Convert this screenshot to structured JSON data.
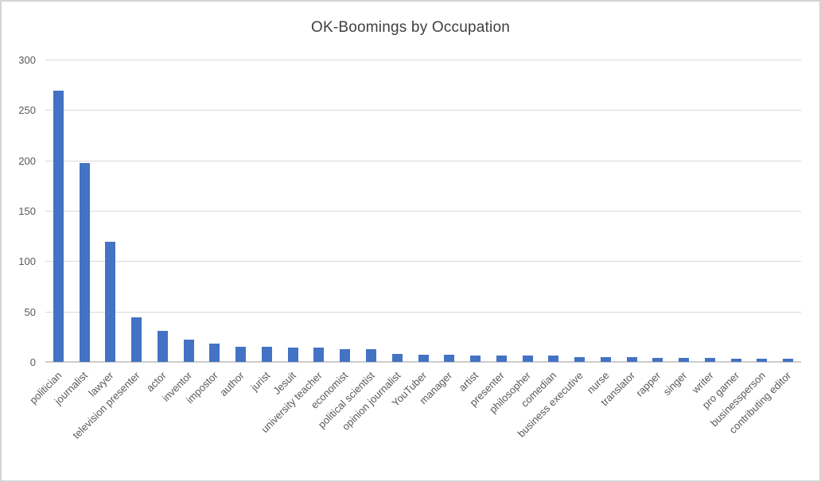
{
  "window": {
    "background_color": "#ffffff",
    "border_color": "#d3d3d3"
  },
  "chart_data": {
    "type": "bar",
    "title": "OK-Boomings by Occupation",
    "xlabel": "",
    "ylabel": "",
    "categories": [
      "politician",
      "journalist",
      "lawyer",
      "television presenter",
      "actor",
      "inventor",
      "impostor",
      "author",
      "jurist",
      "Jesuit",
      "university teacher",
      "economist",
      "political scientist",
      "opinion journalist",
      "YouTuber",
      "manager",
      "artist",
      "presenter",
      "philosopher",
      "comedian",
      "business executive",
      "nurse",
      "translator",
      "rapper",
      "singer",
      "writer",
      "pro gamer",
      "businessperson",
      "contributing editor"
    ],
    "values": [
      269,
      197,
      119,
      44,
      31,
      22,
      18,
      15,
      15,
      14,
      14,
      13,
      13,
      8,
      7,
      7,
      6,
      6,
      6,
      6,
      5,
      5,
      5,
      4,
      4,
      4,
      3,
      3,
      3
    ],
    "ylim": [
      0,
      300
    ],
    "yticks": [
      0,
      50,
      100,
      150,
      200,
      250,
      300
    ],
    "grid": true,
    "legend_position": "none",
    "bar_color": "#4472C4",
    "title_color": "#404040",
    "tick_label_color": "#595959",
    "gridline_color": "#d9d9d9"
  }
}
